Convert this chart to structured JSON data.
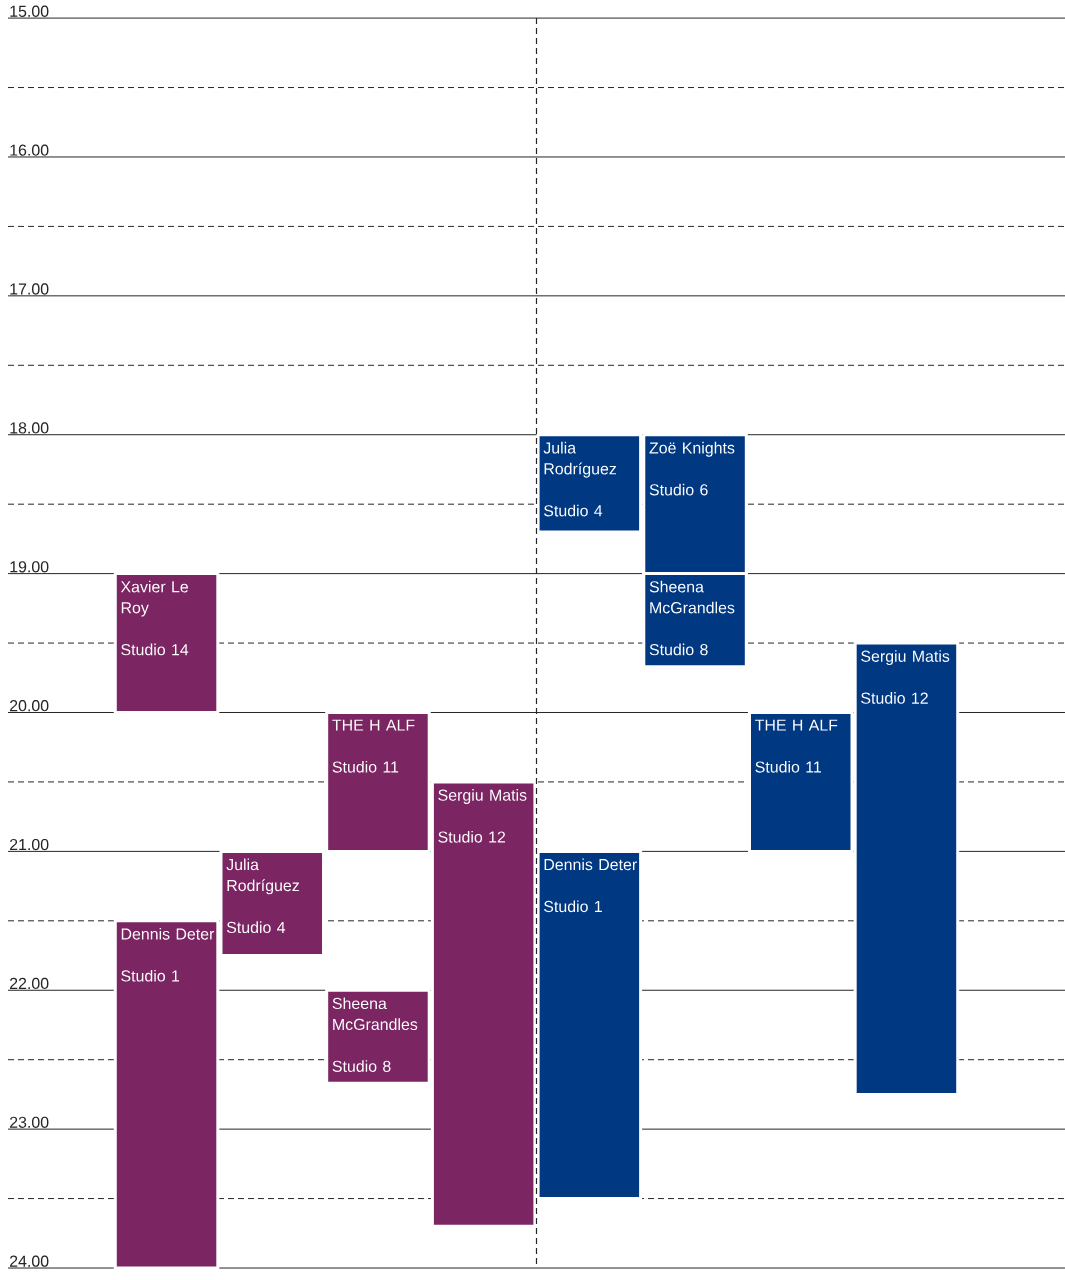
{
  "chart_data": {
    "type": "bar",
    "categories": [
      null,
      null,
      null,
      null,
      null,
      null,
      null,
      null,
      null,
      null
    ],
    "ylim": [
      24,
      15
    ],
    "yticks": [
      {
        "value": 15,
        "label": "15.00"
      },
      {
        "value": 15.5,
        "label": null
      },
      {
        "value": 16,
        "label": "16.00"
      },
      {
        "value": 16.5,
        "label": null
      },
      {
        "value": 17,
        "label": "17.00"
      },
      {
        "value": 17.5,
        "label": null
      },
      {
        "value": 18,
        "label": "18.00"
      },
      {
        "value": 18.5,
        "label": null
      },
      {
        "value": 19,
        "label": "19.00"
      },
      {
        "value": 19.5,
        "label": null
      },
      {
        "value": 20,
        "label": "20.00"
      },
      {
        "value": 20.5,
        "label": null
      },
      {
        "value": 21,
        "label": "21.00"
      },
      {
        "value": 21.5,
        "label": null
      },
      {
        "value": 22,
        "label": "22.00"
      },
      {
        "value": 22.5,
        "label": null
      },
      {
        "value": 23,
        "label": "23.00"
      },
      {
        "value": 23.5,
        "label": null
      },
      {
        "value": 24,
        "label": "24.00"
      }
    ],
    "grid": "y",
    "series": [
      {
        "colors": [
          null,
          "#7b2563",
          "#7b2563",
          "#7b2563",
          "#7b2563",
          "#003882",
          "#003882",
          "#003882",
          "#003882",
          null
        ],
        "base": [
          null,
          19,
          21,
          20,
          20.5,
          18,
          18,
          20,
          19.5,
          null
        ],
        "values": [
          null,
          1,
          0.75,
          1,
          3.2,
          0.7,
          1,
          1,
          3.25,
          null
        ],
        "value_labels": [
          null,
          "Xavier Le Roy\nStudio 14",
          "Julia Rodríguez\nStudio 4",
          "THE H ALF\nStudio 11",
          "Sergiu Matis\nStudio 12",
          "Julia Rodríguez\nStudio 4",
          "Zoë Knights\nStudio 6",
          "THE H ALF\nStudio 11",
          "Sergiu Matis\nStudio 12",
          null
        ]
      },
      {
        "colors": [
          null,
          "#7b2563",
          null,
          "#7b2563",
          null,
          "#003882",
          "#003882",
          null,
          null,
          null
        ],
        "base": [
          null,
          21.5,
          null,
          22,
          null,
          21,
          19,
          null,
          null,
          null
        ],
        "values": [
          null,
          2.5,
          null,
          0.67,
          null,
          2.5,
          0.67,
          null,
          null,
          null
        ],
        "value_labels": [
          null,
          "Dennis Deter\nStudio 1",
          null,
          "Sheena McGrandles\nStudio 8",
          null,
          "Dennis Deter\nStudio 1",
          "Sheena McGrandles\nStudio 8",
          null,
          null,
          null
        ]
      }
    ]
  }
}
